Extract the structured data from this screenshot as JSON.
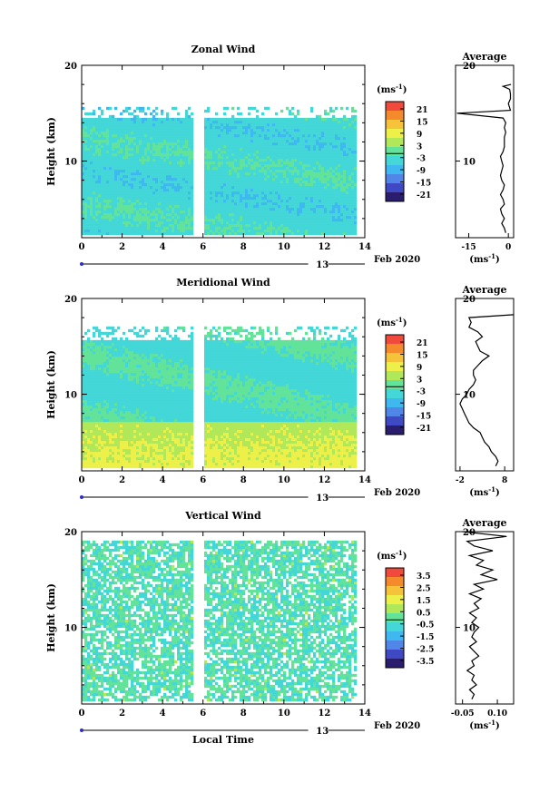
{
  "chart_data": [
    {
      "type": "heatmap",
      "title": "Zonal Wind",
      "ylabel": "Height (km)",
      "xlim": [
        0,
        14
      ],
      "ylim": [
        2,
        20
      ],
      "x_ticks": [
        "0",
        "2",
        "4",
        "6",
        "8",
        "10",
        "12",
        "14"
      ],
      "y_ticks": [
        "10",
        "20"
      ],
      "date_label": "13",
      "month_label": "Feb 2020",
      "colorbar": {
        "unit": "(ms",
        "unit_exp": "-1",
        "unit_close": ")",
        "ticks": [
          "21",
          "15",
          "9",
          "3",
          "-3",
          "-9",
          "-15",
          "-21"
        ],
        "range": [
          -24,
          24
        ]
      },
      "average": {
        "title": "Average",
        "xlabel": "(ms",
        "xlabel_exp": "-1",
        "xlabel_close": ")",
        "x_ticks": [
          "-15",
          "0"
        ],
        "xlim": [
          -20,
          2
        ],
        "y_ticks": [
          "10",
          "20"
        ],
        "profile": [
          [
            2.5,
            -1.0
          ],
          [
            3.0,
            -1.5
          ],
          [
            3.5,
            -2.5
          ],
          [
            4.0,
            -1.5
          ],
          [
            4.5,
            -2.5
          ],
          [
            5.0,
            -3.0
          ],
          [
            5.5,
            -1.5
          ],
          [
            6.0,
            -2.0
          ],
          [
            6.5,
            -3.0
          ],
          [
            7.0,
            -2.0
          ],
          [
            7.5,
            -1.5
          ],
          [
            8.0,
            -2.5
          ],
          [
            8.5,
            -3.0
          ],
          [
            9.0,
            -2.5
          ],
          [
            9.5,
            -2.0
          ],
          [
            10.0,
            -2.5
          ],
          [
            10.5,
            -3.0
          ],
          [
            11.0,
            -2.0
          ],
          [
            11.5,
            -1.5
          ],
          [
            12.0,
            -1.5
          ],
          [
            12.5,
            -1.5
          ],
          [
            13.0,
            -1.0
          ],
          [
            13.5,
            -1.5
          ],
          [
            14.0,
            -1.0
          ],
          [
            14.5,
            -2.0
          ],
          [
            15.0,
            -19.5
          ],
          [
            15.3,
            0.8
          ],
          [
            16.0,
            0.0
          ],
          [
            16.5,
            0.8
          ],
          [
            17.0,
            0.8
          ],
          [
            17.5,
            0.5
          ],
          [
            17.8,
            -2.0
          ],
          [
            18.0,
            1.0
          ]
        ]
      }
    },
    {
      "type": "heatmap",
      "title": "Meridional Wind",
      "ylabel": "Height (km)",
      "xlim": [
        0,
        14
      ],
      "ylim": [
        2,
        20
      ],
      "x_ticks": [
        "0",
        "2",
        "4",
        "6",
        "8",
        "10",
        "12",
        "14"
      ],
      "y_ticks": [
        "10",
        "20"
      ],
      "date_label": "13",
      "month_label": "Feb 2020",
      "colorbar": {
        "unit": "(ms",
        "unit_exp": "-1",
        "unit_close": ")",
        "ticks": [
          "21",
          "15",
          "9",
          "3",
          "-3",
          "-9",
          "-15",
          "-21"
        ],
        "range": [
          -24,
          24
        ]
      },
      "average": {
        "title": "Average",
        "xlabel": "(ms",
        "xlabel_exp": "-1",
        "xlabel_close": ")",
        "x_ticks": [
          "-2",
          "8"
        ],
        "xlim": [
          -3,
          10
        ],
        "y_ticks": [
          "10",
          "20"
        ],
        "profile": [
          [
            2.5,
            6.0
          ],
          [
            3.0,
            6.5
          ],
          [
            3.5,
            6.0
          ],
          [
            4.0,
            5.0
          ],
          [
            4.5,
            4.5
          ],
          [
            5.0,
            3.5
          ],
          [
            5.5,
            3.0
          ],
          [
            6.0,
            2.5
          ],
          [
            6.5,
            1.0
          ],
          [
            7.0,
            0.0
          ],
          [
            7.5,
            -0.5
          ],
          [
            8.0,
            -1.0
          ],
          [
            8.5,
            -1.5
          ],
          [
            9.0,
            -2.0
          ],
          [
            9.5,
            -1.5
          ],
          [
            10.0,
            -0.5
          ],
          [
            10.5,
            0.0
          ],
          [
            11.0,
            1.0
          ],
          [
            11.5,
            1.5
          ],
          [
            12.0,
            1.0
          ],
          [
            12.5,
            1.0
          ],
          [
            13.0,
            2.0
          ],
          [
            13.5,
            3.0
          ],
          [
            14.0,
            4.5
          ],
          [
            14.5,
            2.5
          ],
          [
            15.0,
            2.0
          ],
          [
            15.5,
            1.5
          ],
          [
            16.0,
            3.0
          ],
          [
            16.5,
            2.0
          ],
          [
            17.0,
            0.0
          ],
          [
            17.5,
            0.5
          ],
          [
            18.0,
            0.0
          ],
          [
            18.3,
            10.0
          ]
        ]
      }
    },
    {
      "type": "heatmap",
      "title": "Vertical Wind",
      "ylabel": "Height (km)",
      "xlabel": "Local Time",
      "xlim": [
        0,
        14
      ],
      "ylim": [
        2,
        20
      ],
      "x_ticks": [
        "0",
        "2",
        "4",
        "6",
        "8",
        "10",
        "12",
        "14"
      ],
      "y_ticks": [
        "10",
        "20"
      ],
      "date_label": "13",
      "month_label": "Feb 2020",
      "colorbar": {
        "unit": "(ms",
        "unit_exp": "-1",
        "unit_close": ")",
        "ticks": [
          "3.5",
          "2.5",
          "1.5",
          "0.5",
          "-0.5",
          "-1.5",
          "-2.5",
          "-3.5"
        ],
        "range": [
          -4,
          4
        ]
      },
      "average": {
        "title": "Average",
        "xlabel": "(ms",
        "xlabel_exp": "-1",
        "xlabel_close": ")",
        "x_ticks": [
          "-0.05",
          "0.10"
        ],
        "xlim": [
          -0.08,
          0.17
        ],
        "y_ticks": [
          "10",
          "20"
        ],
        "profile": [
          [
            2.5,
            -0.01
          ],
          [
            3.0,
            0.0
          ],
          [
            3.5,
            -0.02
          ],
          [
            4.0,
            0.01
          ],
          [
            4.5,
            -0.01
          ],
          [
            5.0,
            0.0
          ],
          [
            5.5,
            -0.03
          ],
          [
            6.0,
            0.0
          ],
          [
            6.5,
            -0.01
          ],
          [
            7.0,
            0.02
          ],
          [
            7.5,
            0.0
          ],
          [
            8.0,
            -0.02
          ],
          [
            8.5,
            0.01
          ],
          [
            9.0,
            -0.01
          ],
          [
            9.5,
            0.0
          ],
          [
            10.0,
            0.02
          ],
          [
            10.5,
            -0.01
          ],
          [
            11.0,
            0.01
          ],
          [
            11.5,
            -0.02
          ],
          [
            12.0,
            0.02
          ],
          [
            12.5,
            0.0
          ],
          [
            13.0,
            0.03
          ],
          [
            13.5,
            -0.02
          ],
          [
            14.0,
            0.04
          ],
          [
            14.5,
            0.0
          ],
          [
            15.0,
            0.1
          ],
          [
            15.5,
            0.03
          ],
          [
            16.0,
            0.08
          ],
          [
            16.5,
            0.01
          ],
          [
            17.0,
            0.04
          ],
          [
            17.5,
            -0.02
          ],
          [
            18.0,
            0.08
          ],
          [
            18.5,
            0.0
          ],
          [
            19.0,
            -0.03
          ],
          [
            19.5,
            0.14
          ],
          [
            20.0,
            -0.05
          ]
        ]
      }
    }
  ],
  "footer": {
    "xlabel": "Local Time"
  }
}
